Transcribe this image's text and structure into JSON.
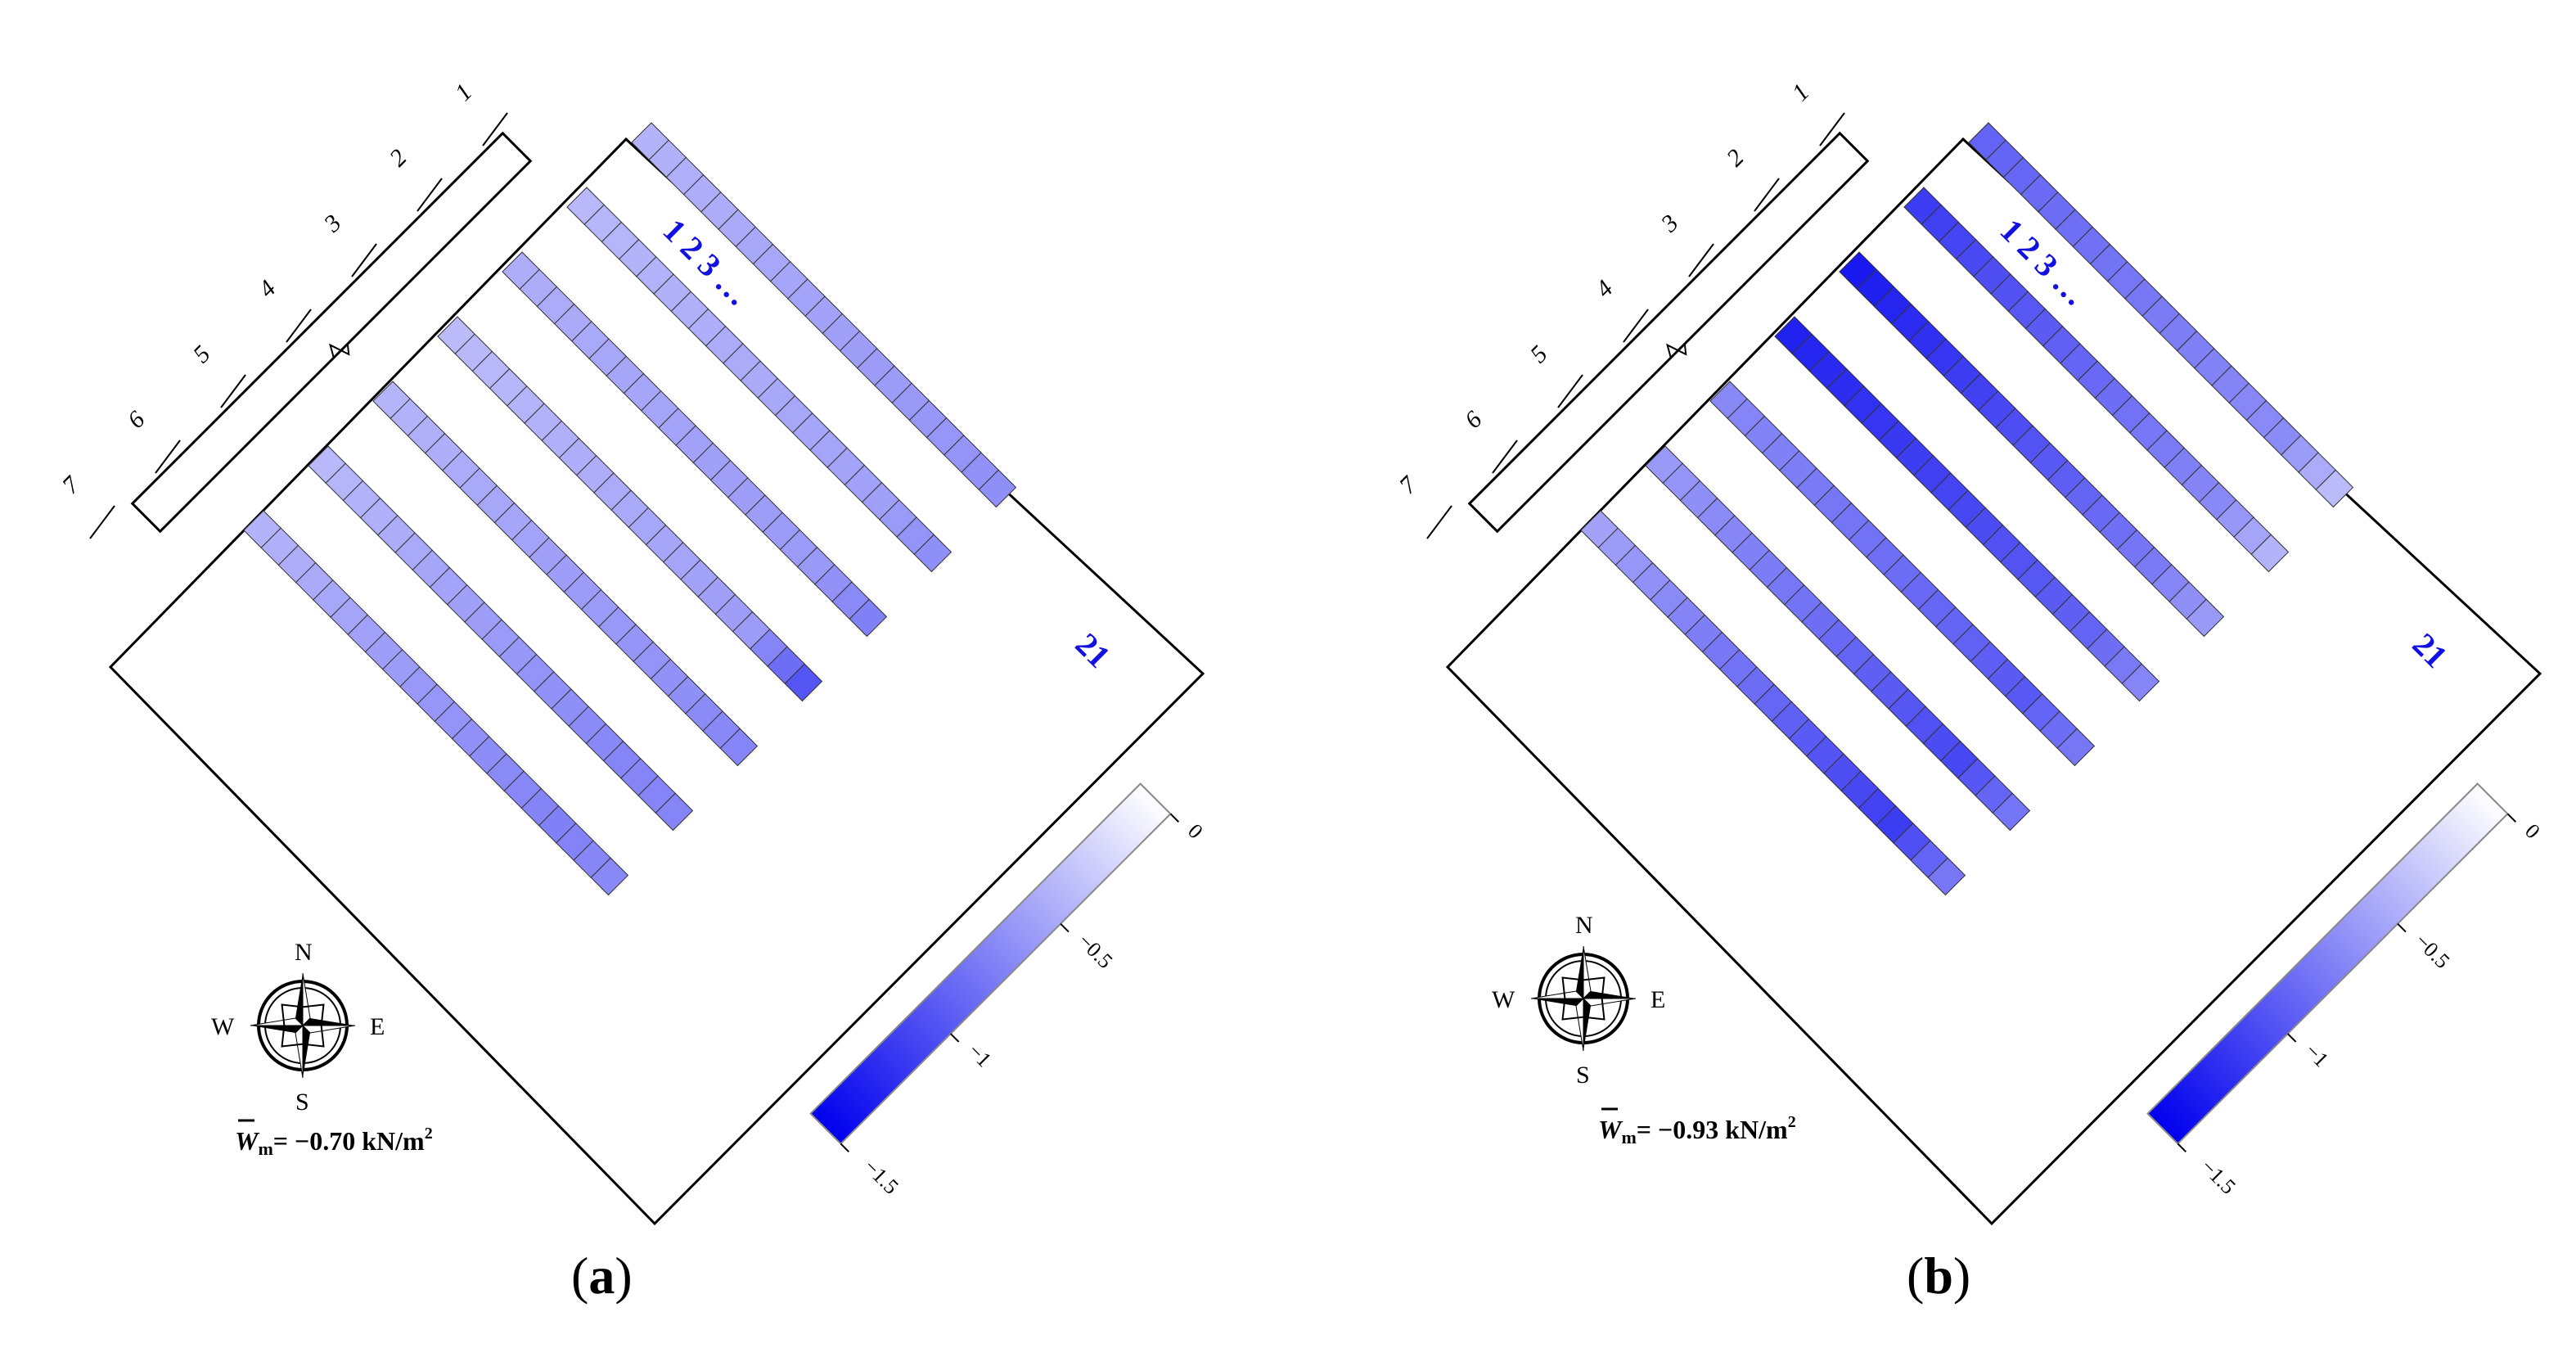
{
  "colorbar": {
    "ticks": [
      "0",
      "−0.5",
      "−1",
      "−1.5"
    ],
    "min": -1.5,
    "max": 0
  },
  "compass": {
    "n": "N",
    "e": "E",
    "s": "S",
    "w": "W"
  },
  "row_numbers": [
    "1",
    "2",
    "3",
    "4",
    "5",
    "6",
    "7"
  ],
  "column_labels": {
    "start": "1 2 3 …",
    "end": "21"
  },
  "panels": [
    {
      "caption_open": "(",
      "caption_letter": "a",
      "caption_close": ")",
      "wm": {
        "symbol": "W",
        "sub": "m",
        "value": "= −0.70 kN/m",
        "sup": "2"
      },
      "rows": [
        {
          "start": -0.45,
          "end": -0.62,
          "tail": -0.66
        },
        {
          "start": -0.42,
          "end": -0.56,
          "tail": -0.66
        },
        {
          "start": -0.48,
          "end": -0.6,
          "tail": -0.74
        },
        {
          "start": -0.4,
          "end": -0.58,
          "tail": -1.0
        },
        {
          "start": -0.44,
          "end": -0.66,
          "tail": -0.72
        },
        {
          "start": -0.42,
          "end": -0.72,
          "tail": -0.72
        },
        {
          "start": -0.45,
          "end": -0.74,
          "tail": -0.7
        }
      ]
    },
    {
      "caption_open": "(",
      "caption_letter": "b",
      "caption_close": ")",
      "wm": {
        "symbol": "W",
        "sub": "m",
        "value": "= −0.93 kN/m",
        "sup": "2"
      },
      "rows": [
        {
          "start": -0.92,
          "end": -0.68,
          "tail": -0.4
        },
        {
          "start": -1.15,
          "end": -0.7,
          "tail": -0.45
        },
        {
          "start": -1.35,
          "end": -0.78,
          "tail": -0.6
        },
        {
          "start": -1.3,
          "end": -0.92,
          "tail": -0.72
        },
        {
          "start": -0.7,
          "end": -0.98,
          "tail": -0.8
        },
        {
          "start": -0.6,
          "end": -1.08,
          "tail": -0.82
        },
        {
          "start": -0.55,
          "end": -1.15,
          "tail": -0.8
        }
      ]
    }
  ]
}
